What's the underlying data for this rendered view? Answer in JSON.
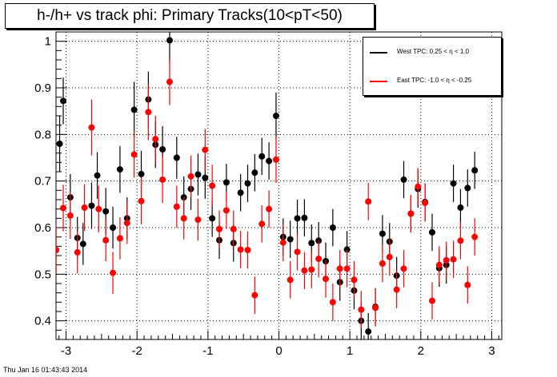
{
  "chart_data": {
    "type": "scatter",
    "title": "h-/h+ vs track phi: Primary Tracks(10<pT<50)",
    "xlabel": "",
    "ylabel": "",
    "xlim": [
      -3.1416,
      3.1416
    ],
    "ylim": [
      0.36,
      1.02
    ],
    "x_ticks": [
      -3,
      -2,
      -1,
      0,
      1,
      2,
      3
    ],
    "y_ticks": [
      0.4,
      0.5,
      0.6,
      0.7,
      0.8,
      0.9,
      1
    ],
    "grid": true,
    "legend_position": "top-right",
    "series": [
      {
        "name": "West TPC: 0.25 <    η < 1.0",
        "color": "#000000",
        "points": [
          [
            -3.09,
            0.78,
            0.06
          ],
          [
            -3.04,
            0.872,
            0.05
          ],
          [
            -2.94,
            0.665,
            0.05
          ],
          [
            -2.84,
            0.578,
            0.045
          ],
          [
            -2.76,
            0.565,
            0.045
          ],
          [
            -2.64,
            0.647,
            0.05
          ],
          [
            -2.56,
            0.712,
            0.05
          ],
          [
            -2.44,
            0.635,
            0.05
          ],
          [
            -2.34,
            0.6,
            0.045
          ],
          [
            -2.24,
            0.725,
            0.05
          ],
          [
            -2.14,
            0.62,
            0.045
          ],
          [
            -2.04,
            0.853,
            0.06
          ],
          [
            -1.94,
            0.715,
            0.05
          ],
          [
            -1.84,
            0.875,
            0.06
          ],
          [
            -1.74,
            0.778,
            0.05
          ],
          [
            -1.64,
            0.768,
            0.05
          ],
          [
            -1.54,
            1.002,
            0.05
          ],
          [
            -1.44,
            0.75,
            0.045
          ],
          [
            -1.34,
            0.665,
            0.045
          ],
          [
            -1.24,
            0.683,
            0.045
          ],
          [
            -1.14,
            0.714,
            0.045
          ],
          [
            -1.04,
            0.707,
            0.045
          ],
          [
            -0.94,
            0.62,
            0.04
          ],
          [
            -0.84,
            0.573,
            0.04
          ],
          [
            -0.74,
            0.697,
            0.04
          ],
          [
            -0.64,
            0.567,
            0.04
          ],
          [
            -0.54,
            0.675,
            0.04
          ],
          [
            -0.44,
            0.695,
            0.04
          ],
          [
            -0.34,
            0.718,
            0.04
          ],
          [
            -0.24,
            0.753,
            0.04
          ],
          [
            -0.14,
            0.743,
            0.04
          ],
          [
            -0.04,
            0.84,
            0.05
          ],
          [
            0.06,
            0.58,
            0.04
          ],
          [
            0.16,
            0.575,
            0.04
          ],
          [
            0.26,
            0.62,
            0.04
          ],
          [
            0.36,
            0.621,
            0.04
          ],
          [
            0.46,
            0.567,
            0.04
          ],
          [
            0.56,
            0.572,
            0.04
          ],
          [
            0.66,
            0.528,
            0.04
          ],
          [
            0.76,
            0.6,
            0.04
          ],
          [
            0.86,
            0.483,
            0.04
          ],
          [
            0.96,
            0.553,
            0.04
          ],
          [
            1.06,
            0.465,
            0.04
          ],
          [
            1.16,
            0.4,
            0.04
          ],
          [
            1.26,
            0.377,
            0.04
          ],
          [
            1.36,
            0.43,
            0.04
          ],
          [
            1.46,
            0.587,
            0.04
          ],
          [
            1.56,
            0.57,
            0.04
          ],
          [
            1.66,
            0.497,
            0.04
          ],
          [
            1.76,
            0.703,
            0.04
          ],
          [
            1.86,
            0.63,
            0.04
          ],
          [
            1.96,
            0.683,
            0.04
          ],
          [
            2.06,
            0.655,
            0.04
          ],
          [
            2.16,
            0.59,
            0.04
          ],
          [
            2.26,
            0.513,
            0.04
          ],
          [
            2.36,
            0.52,
            0.04
          ],
          [
            2.46,
            0.695,
            0.04
          ],
          [
            2.56,
            0.643,
            0.04
          ],
          [
            2.66,
            0.685,
            0.04
          ],
          [
            2.76,
            0.723,
            0.04
          ]
        ]
      },
      {
        "name": "East TPC: -1.0 <    η < -0.25",
        "color": "#ff0000",
        "points": [
          [
            -3.14,
            0.552,
            0.05
          ],
          [
            -3.04,
            0.642,
            0.05
          ],
          [
            -2.94,
            0.626,
            0.05
          ],
          [
            -2.84,
            0.547,
            0.045
          ],
          [
            -2.74,
            0.643,
            0.05
          ],
          [
            -2.64,
            0.815,
            0.06
          ],
          [
            -2.54,
            0.64,
            0.05
          ],
          [
            -2.44,
            0.573,
            0.045
          ],
          [
            -2.34,
            0.503,
            0.045
          ],
          [
            -2.24,
            0.577,
            0.045
          ],
          [
            -2.14,
            0.61,
            0.045
          ],
          [
            -2.04,
            0.757,
            0.05
          ],
          [
            -1.94,
            0.657,
            0.05
          ],
          [
            -1.84,
            0.848,
            0.06
          ],
          [
            -1.74,
            0.79,
            0.05
          ],
          [
            -1.64,
            0.703,
            0.05
          ],
          [
            -1.54,
            0.913,
            0.05
          ],
          [
            -1.44,
            0.645,
            0.045
          ],
          [
            -1.34,
            0.62,
            0.045
          ],
          [
            -1.24,
            0.71,
            0.045
          ],
          [
            -1.14,
            0.617,
            0.045
          ],
          [
            -1.04,
            0.767,
            0.045
          ],
          [
            -0.94,
            0.69,
            0.045
          ],
          [
            -0.84,
            0.597,
            0.04
          ],
          [
            -0.74,
            0.637,
            0.04
          ],
          [
            -0.64,
            0.597,
            0.04
          ],
          [
            -0.54,
            0.553,
            0.04
          ],
          [
            -0.44,
            0.552,
            0.04
          ],
          [
            -0.34,
            0.455,
            0.04
          ],
          [
            -0.24,
            0.608,
            0.04
          ],
          [
            -0.14,
            0.64,
            0.04
          ],
          [
            -0.04,
            0.746,
            0.05
          ],
          [
            0.06,
            0.568,
            0.04
          ],
          [
            0.16,
            0.488,
            0.04
          ],
          [
            0.26,
            0.548,
            0.04
          ],
          [
            0.36,
            0.508,
            0.04
          ],
          [
            0.46,
            0.51,
            0.04
          ],
          [
            0.56,
            0.533,
            0.04
          ],
          [
            0.66,
            0.49,
            0.04
          ],
          [
            0.76,
            0.44,
            0.04
          ],
          [
            0.86,
            0.512,
            0.04
          ],
          [
            0.96,
            0.512,
            0.04
          ],
          [
            1.06,
            0.488,
            0.04
          ],
          [
            1.16,
            0.424,
            0.04
          ],
          [
            1.26,
            0.656,
            0.04
          ],
          [
            1.36,
            0.428,
            0.04
          ],
          [
            1.46,
            0.523,
            0.04
          ],
          [
            1.56,
            0.537,
            0.04
          ],
          [
            1.66,
            0.467,
            0.04
          ],
          [
            1.76,
            0.512,
            0.04
          ],
          [
            1.86,
            0.63,
            0.04
          ],
          [
            1.96,
            0.688,
            0.04
          ],
          [
            2.06,
            0.653,
            0.04
          ],
          [
            2.16,
            0.443,
            0.04
          ],
          [
            2.26,
            0.52,
            0.04
          ],
          [
            2.36,
            0.53,
            0.04
          ],
          [
            2.46,
            0.532,
            0.04
          ],
          [
            2.56,
            0.572,
            0.04
          ],
          [
            2.66,
            0.477,
            0.04
          ],
          [
            2.76,
            0.58,
            0.04
          ]
        ]
      }
    ]
  },
  "timestamp": "Thu Jan 16 01:43:43 2014",
  "colors": {
    "grid": "#000000",
    "frame": "#000000",
    "background": "#ffffff"
  }
}
